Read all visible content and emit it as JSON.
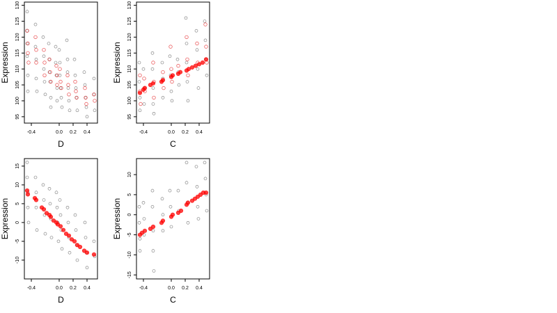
{
  "chart_data": [
    {
      "type": "scatter",
      "xlabel": "D",
      "ylabel": "Expression",
      "xlim": [
        -0.5,
        0.55
      ],
      "ylim": [
        93,
        131
      ],
      "xticks": [
        -0.4,
        0.0,
        0.2,
        0.4
      ],
      "xtick_labels": [
        "-0.4",
        "0.0",
        "0.2",
        "0.4"
      ],
      "yticks": [
        95,
        100,
        105,
        110,
        115,
        120,
        125,
        130
      ],
      "ytick_labels": [
        "95",
        "100",
        "105",
        "110",
        "115",
        "120",
        "125",
        "130"
      ],
      "series": [
        {
          "color": "#000000",
          "marker": "open-circle",
          "x": [
            -0.46,
            -0.46,
            -0.46,
            -0.46,
            -0.45,
            -0.45,
            -0.34,
            -0.34,
            -0.33,
            -0.33,
            -0.32,
            -0.23,
            -0.22,
            -0.22,
            -0.21,
            -0.2,
            -0.15,
            -0.14,
            -0.14,
            -0.13,
            -0.12,
            -0.12,
            -0.05,
            -0.05,
            -0.04,
            -0.03,
            -0.03,
            0.0,
            0.01,
            0.01,
            0.02,
            0.03,
            0.04,
            0.11,
            0.12,
            0.12,
            0.13,
            0.14,
            0.15,
            0.22,
            0.23,
            0.24,
            0.25,
            0.26,
            0.36,
            0.37,
            0.38,
            0.39,
            0.4,
            0.5,
            0.5,
            0.51
          ],
          "y": [
            128,
            122,
            118,
            114,
            108,
            103,
            124,
            117,
            113,
            107,
            103,
            120,
            114,
            110,
            106,
            102,
            118,
            113,
            109,
            106,
            101,
            98,
            117,
            112,
            108,
            104,
            100,
            116,
            112,
            108,
            104,
            101,
            98,
            119,
            113,
            109,
            104,
            100,
            97,
            113,
            108,
            104,
            101,
            97,
            109,
            105,
            101,
            98,
            95,
            107,
            102,
            97
          ]
        },
        {
          "color": "#e41a1c",
          "marker": "open-circle",
          "x": [
            -0.46,
            -0.45,
            -0.45,
            -0.44,
            -0.34,
            -0.33,
            -0.33,
            -0.22,
            -0.21,
            -0.21,
            -0.14,
            -0.13,
            -0.12,
            -0.04,
            -0.03,
            -0.03,
            0.01,
            0.02,
            0.03,
            0.12,
            0.13,
            0.14,
            0.23,
            0.24,
            0.25,
            0.37,
            0.38,
            0.39,
            0.5,
            0.51
          ],
          "y": [
            122,
            118,
            115,
            112,
            120,
            116,
            112,
            116,
            112,
            108,
            113,
            109,
            106,
            111,
            108,
            105,
            110,
            106,
            104,
            108,
            105,
            102,
            106,
            103,
            101,
            104,
            101,
            99,
            102,
            100
          ]
        }
      ]
    },
    {
      "type": "scatter",
      "xlabel": "C",
      "ylabel": "Expression",
      "xlim": [
        -0.5,
        0.55
      ],
      "ylim": [
        93,
        131
      ],
      "xticks": [
        -0.4,
        0.0,
        0.2,
        0.4
      ],
      "xtick_labels": [
        "-0.4",
        "0.0",
        "0.2",
        "0.4"
      ],
      "yticks": [
        95,
        100,
        105,
        110,
        115,
        120,
        125,
        130
      ],
      "ytick_labels": [
        "95",
        "100",
        "105",
        "110",
        "115",
        "120",
        "125",
        "130"
      ],
      "series": [
        {
          "color": "#000000",
          "marker": "open-circle",
          "x": [
            -0.46,
            -0.46,
            -0.45,
            -0.45,
            -0.4,
            -0.39,
            -0.39,
            -0.27,
            -0.27,
            -0.26,
            -0.26,
            -0.25,
            -0.13,
            -0.12,
            -0.12,
            -0.02,
            -0.01,
            0.0,
            0.01,
            0.09,
            0.1,
            0.11,
            0.21,
            0.22,
            0.22,
            0.23,
            0.24,
            0.36,
            0.37,
            0.38,
            0.39,
            0.48,
            0.49,
            0.5,
            0.51
          ],
          "y": [
            112,
            106,
            101,
            97,
            110,
            104,
            99,
            115,
            110,
            104,
            99,
            96,
            112,
            107,
            101,
            114,
            108,
            103,
            100,
            113,
            109,
            105,
            126,
            118,
            112,
            106,
            100,
            122,
            116,
            110,
            104,
            125,
            119,
            113,
            108
          ]
        },
        {
          "color": "#e41a1c",
          "marker": "open-circle",
          "x": [
            -0.45,
            -0.45,
            -0.44,
            -0.39,
            -0.38,
            -0.26,
            -0.25,
            -0.25,
            -0.12,
            -0.11,
            -0.01,
            0.0,
            0.01,
            0.1,
            0.22,
            0.23,
            0.24,
            0.37,
            0.38,
            0.49,
            0.5,
            0.51
          ],
          "y": [
            108,
            103,
            99,
            107,
            103,
            112,
            106,
            101,
            109,
            104,
            117,
            110,
            106,
            111,
            120,
            113,
            108,
            118,
            112,
            124,
            117,
            112
          ]
        },
        {
          "color": "#ff0000",
          "marker": "filled-circle",
          "x": [
            -0.45,
            -0.4,
            -0.38,
            -0.3,
            -0.26,
            -0.14,
            -0.12,
            0.0,
            0.02,
            0.1,
            0.13,
            0.22,
            0.25,
            0.3,
            0.35,
            0.4,
            0.45,
            0.5
          ],
          "y": [
            102.5,
            103.5,
            104,
            105,
            105.5,
            106,
            106.5,
            107.5,
            108,
            108.5,
            109,
            109.5,
            110,
            110.5,
            111,
            111.5,
            112,
            113
          ]
        }
      ]
    },
    {
      "type": "scatter",
      "xlabel": "D",
      "ylabel": "Expression",
      "xlim": [
        -0.5,
        0.55
      ],
      "ylim": [
        -15,
        17
      ],
      "xticks": [
        -0.4,
        0.0,
        0.2,
        0.4
      ],
      "xtick_labels": [
        "-0.4",
        "0.0",
        "0.2",
        "0.4"
      ],
      "yticks": [
        -10,
        -5,
        0,
        5,
        10,
        15
      ],
      "ytick_labels": [
        "-10",
        "-5",
        "0",
        "5",
        "10",
        "15"
      ],
      "series": [
        {
          "color": "#000000",
          "marker": "open-circle",
          "x": [
            -0.46,
            -0.46,
            -0.45,
            -0.45,
            -0.44,
            -0.34,
            -0.33,
            -0.33,
            -0.32,
            -0.23,
            -0.22,
            -0.21,
            -0.2,
            -0.14,
            -0.13,
            -0.12,
            -0.11,
            -0.04,
            -0.03,
            -0.02,
            -0.01,
            0.01,
            0.02,
            0.03,
            0.04,
            0.12,
            0.13,
            0.14,
            0.15,
            0.23,
            0.24,
            0.25,
            0.26,
            0.37,
            0.38,
            0.39,
            0.4,
            0.5,
            0.51
          ],
          "y": [
            16,
            12,
            8,
            4,
            0,
            12,
            8,
            4,
            -2,
            10,
            6,
            2,
            -3,
            9,
            5,
            1,
            -4,
            8,
            4,
            0,
            -5,
            6,
            2,
            -2,
            -7,
            4,
            0,
            -4,
            -8,
            2,
            -2,
            -6,
            -10,
            0,
            -4,
            -8,
            -12,
            -5,
            -9
          ]
        },
        {
          "color": "#ff0000",
          "marker": "filled-circle",
          "x": [
            -0.46,
            -0.45,
            -0.35,
            -0.33,
            -0.25,
            -0.22,
            -0.18,
            -0.14,
            -0.12,
            -0.08,
            -0.04,
            -0.02,
            0.02,
            0.06,
            0.1,
            0.14,
            0.18,
            0.22,
            0.26,
            0.3,
            0.36,
            0.4,
            0.5
          ],
          "y": [
            8.5,
            7.5,
            6.5,
            6,
            4,
            3.5,
            2.5,
            2,
            1.5,
            0.5,
            0,
            -0.5,
            -1,
            -2,
            -3,
            -3.5,
            -4.5,
            -5,
            -6,
            -6.5,
            -7.5,
            -8,
            -8.5
          ]
        }
      ]
    },
    {
      "type": "scatter",
      "xlabel": "C",
      "ylabel": "Expression",
      "xlim": [
        -0.5,
        0.55
      ],
      "ylim": [
        -16,
        14
      ],
      "xticks": [
        -0.4,
        0.0,
        0.2,
        0.4
      ],
      "xtick_labels": [
        "-0.4",
        "0.0",
        "0.2",
        "0.4"
      ],
      "yticks": [
        -15,
        -10,
        -5,
        0,
        5,
        10
      ],
      "ytick_labels": [
        "-15",
        "-10",
        "-5",
        "0",
        "5",
        "10"
      ],
      "series": [
        {
          "color": "#000000",
          "marker": "open-circle",
          "x": [
            -0.46,
            -0.46,
            -0.45,
            -0.45,
            -0.4,
            -0.39,
            -0.39,
            -0.27,
            -0.27,
            -0.26,
            -0.26,
            -0.25,
            -0.13,
            -0.12,
            -0.12,
            -0.02,
            -0.01,
            0.0,
            0.1,
            0.11,
            0.22,
            0.22,
            0.23,
            0.24,
            0.36,
            0.37,
            0.38,
            0.39,
            0.48,
            0.49,
            0.5,
            0.51
          ],
          "y": [
            2,
            -2,
            -6,
            -9,
            3,
            -1,
            -5,
            6,
            2,
            -4,
            -9,
            -14,
            4,
            0,
            -4,
            6,
            2,
            -3,
            6,
            1,
            13,
            8,
            3,
            -2,
            12,
            7,
            2,
            -1,
            13,
            9,
            5,
            1
          ]
        },
        {
          "color": "#ff0000",
          "marker": "filled-circle",
          "x": [
            -0.45,
            -0.42,
            -0.38,
            -0.3,
            -0.26,
            -0.14,
            -0.12,
            0.0,
            0.02,
            0.1,
            0.14,
            0.22,
            0.24,
            0.3,
            0.34,
            0.38,
            0.42,
            0.46,
            0.5
          ],
          "y": [
            -5,
            -4.5,
            -4,
            -3.5,
            -3,
            -2,
            -1.5,
            -0.5,
            0,
            0.5,
            1,
            2.5,
            3,
            3.5,
            4,
            4.5,
            5,
            5.5,
            5.5
          ]
        }
      ]
    }
  ]
}
